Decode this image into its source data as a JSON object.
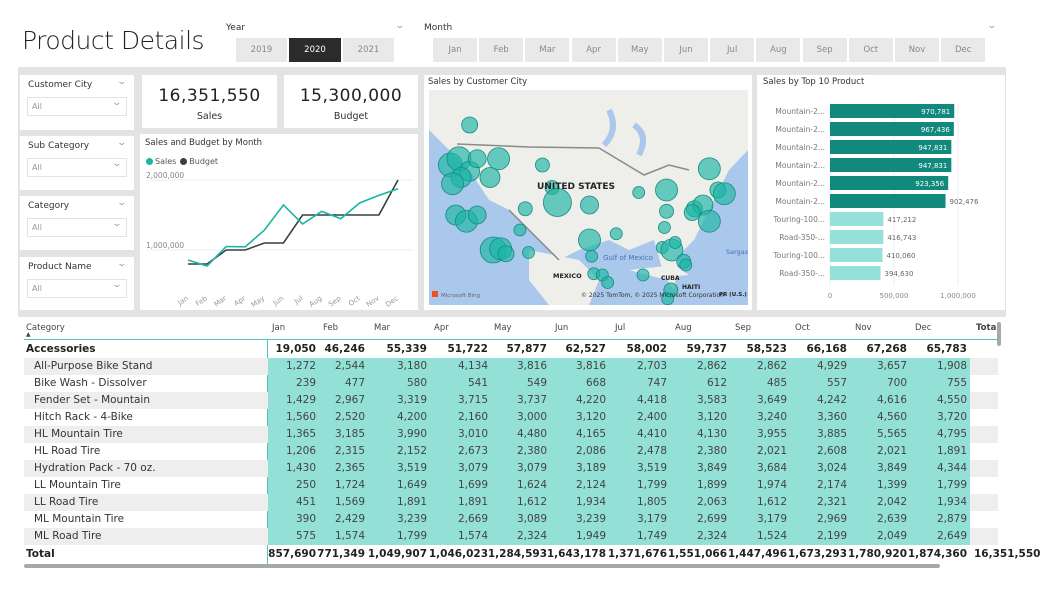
{
  "header": {
    "title": "Product Details"
  },
  "year_slicer": {
    "label": "Year",
    "options": [
      "2019",
      "2020",
      "2021"
    ],
    "selected": "2020"
  },
  "month_slicer": {
    "label": "Month",
    "options": [
      "Jan",
      "Feb",
      "Mar",
      "Apr",
      "May",
      "Jun",
      "Jul",
      "Aug",
      "Sep",
      "Oct",
      "Nov",
      "Dec"
    ]
  },
  "filters": [
    {
      "label": "Customer City",
      "value": "All"
    },
    {
      "label": "Sub Category",
      "value": "All"
    },
    {
      "label": "Category",
      "value": "All"
    },
    {
      "label": "Product Name",
      "value": "All"
    }
  ],
  "kpis": [
    {
      "value": "16,351,550",
      "label": "Sales"
    },
    {
      "value": "15,300,000",
      "label": "Budget"
    }
  ],
  "colors": {
    "teal": "#1ab5a3",
    "dark_teal": "#11897c",
    "light_teal": "#95e0d8",
    "budget": "#3a3f42",
    "table_highlight": "#93e0d7"
  },
  "chart_data": [
    {
      "type": "line",
      "title": "Sales and Budget by Month",
      "categories": [
        "Jan",
        "Feb",
        "Mar",
        "Apr",
        "May",
        "Jun",
        "Jul",
        "Aug",
        "Sep",
        "Oct",
        "Nov",
        "Dec"
      ],
      "yticks": [
        "1,000,000",
        "2,000,000"
      ],
      "ylim": [
        600000,
        2100000
      ],
      "series": [
        {
          "name": "Sales",
          "color": "#1ab5a3",
          "values": [
            857690,
            771349,
            1049907,
            1046023,
            1284593,
            1643178,
            1371676,
            1551066,
            1447496,
            1673293,
            1780920,
            1874360
          ]
        },
        {
          "name": "Budget",
          "color": "#3a3f42",
          "values": [
            800000,
            800000,
            1000000,
            1000000,
            1100000,
            1100000,
            1500000,
            1500000,
            1500000,
            1500000,
            1500000,
            2000000
          ]
        }
      ]
    },
    {
      "type": "bar",
      "orientation": "horizontal",
      "title": "Sales by Top 10 Product",
      "categories": [
        "Mountain-2...",
        "Mountain-2...",
        "Mountain-2...",
        "Mountain-2...",
        "Mountain-2...",
        "Mountain-2...",
        "Touring-100...",
        "Road-350-...",
        "Touring-100...",
        "Road-350-..."
      ],
      "values": [
        970781,
        967436,
        947831,
        947831,
        923356,
        902476,
        417212,
        416743,
        410060,
        394630
      ],
      "labels": [
        "970,781",
        "967,436",
        "947,831",
        "947,831",
        "923,356",
        "902,476",
        "417,212",
        "416,743",
        "410,060",
        "394,630"
      ],
      "xticks": [
        "0",
        "500,000",
        "1,000,000"
      ],
      "xlim": [
        0,
        1000000
      ]
    }
  ],
  "map": {
    "title": "Sales by Customer City",
    "labels": {
      "country": "UNITED STATES",
      "mexico": "MEXICO",
      "gulf": "Gulf of Mexico",
      "cuba": "CUBA",
      "haiti": "HAITI",
      "pr": "PR (U.S.)",
      "sargasso": "Sargas"
    },
    "attribution": "© 2025 TomTom, © 2025 Microsoft Corporation",
    "logo": "Microsoft Bing"
  },
  "table": {
    "columns": [
      "Category",
      "Jan",
      "Feb",
      "Mar",
      "Apr",
      "May",
      "Jun",
      "Jul",
      "Aug",
      "Sep",
      "Oct",
      "Nov",
      "Dec",
      "Total"
    ],
    "group": {
      "name": "Accessories",
      "values": [
        "19,050",
        "46,246",
        "55,339",
        "51,722",
        "57,877",
        "62,527",
        "58,002",
        "59,737",
        "58,523",
        "66,168",
        "67,268",
        "65,783"
      ]
    },
    "rows": [
      {
        "name": "All-Purpose Bike Stand",
        "values": [
          "1,272",
          "2,544",
          "3,180",
          "4,134",
          "3,816",
          "3,816",
          "2,703",
          "2,862",
          "2,862",
          "4,929",
          "3,657",
          "1,908"
        ]
      },
      {
        "name": "Bike Wash - Dissolver",
        "values": [
          "239",
          "477",
          "580",
          "541",
          "549",
          "668",
          "747",
          "612",
          "485",
          "557",
          "700",
          "755"
        ]
      },
      {
        "name": "Fender Set - Mountain",
        "values": [
          "1,429",
          "2,967",
          "3,319",
          "3,715",
          "3,737",
          "4,220",
          "4,418",
          "3,583",
          "3,649",
          "4,242",
          "4,616",
          "4,550"
        ]
      },
      {
        "name": "Hitch Rack - 4-Bike",
        "values": [
          "1,560",
          "2,520",
          "4,200",
          "2,160",
          "3,000",
          "3,120",
          "2,400",
          "3,120",
          "3,240",
          "3,360",
          "4,560",
          "3,720"
        ]
      },
      {
        "name": "HL Mountain Tire",
        "values": [
          "1,365",
          "3,185",
          "3,990",
          "3,010",
          "4,480",
          "4,165",
          "4,410",
          "4,130",
          "3,955",
          "3,885",
          "5,565",
          "4,795"
        ]
      },
      {
        "name": "HL Road Tire",
        "values": [
          "1,206",
          "2,315",
          "2,152",
          "2,673",
          "2,380",
          "2,086",
          "2,478",
          "2,380",
          "2,021",
          "2,608",
          "2,021",
          "1,891"
        ]
      },
      {
        "name": "Hydration Pack - 70 oz.",
        "values": [
          "1,430",
          "2,365",
          "3,519",
          "3,079",
          "3,079",
          "3,189",
          "3,519",
          "3,849",
          "3,684",
          "3,024",
          "3,849",
          "4,344"
        ]
      },
      {
        "name": "LL Mountain Tire",
        "values": [
          "250",
          "1,724",
          "1,649",
          "1,699",
          "1,624",
          "2,124",
          "1,799",
          "1,899",
          "1,974",
          "2,174",
          "1,399",
          "1,799"
        ]
      },
      {
        "name": "LL Road Tire",
        "values": [
          "451",
          "1,569",
          "1,891",
          "1,891",
          "1,612",
          "1,934",
          "1,805",
          "2,063",
          "1,612",
          "2,321",
          "2,042",
          "1,934"
        ]
      },
      {
        "name": "ML Mountain Tire",
        "values": [
          "390",
          "2,429",
          "3,239",
          "2,669",
          "3,089",
          "3,239",
          "3,179",
          "2,699",
          "3,179",
          "2,969",
          "2,639",
          "2,879"
        ]
      },
      {
        "name": "ML Road Tire",
        "values": [
          "575",
          "1,574",
          "1,799",
          "1,574",
          "2,324",
          "1,949",
          "1,749",
          "2,324",
          "1,524",
          "2,199",
          "2,049",
          "2,649"
        ]
      }
    ],
    "total": {
      "name": "Total",
      "values": [
        "857,690",
        "771,349",
        "1,049,907",
        "1,046,023",
        "1,284,593",
        "1,643,178",
        "1,371,676",
        "1,551,066",
        "1,447,496",
        "1,673,293",
        "1,780,920",
        "1,874,360"
      ],
      "grand": "16,351,550"
    }
  }
}
